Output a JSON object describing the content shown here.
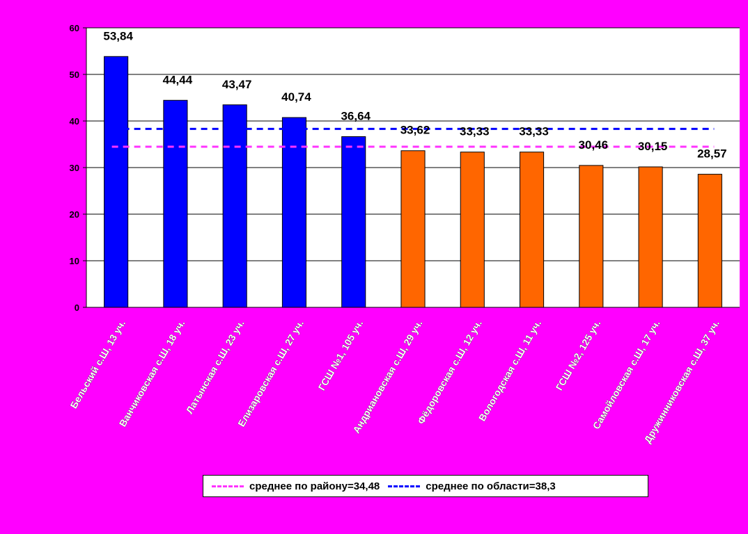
{
  "chart_data": {
    "type": "bar",
    "categories": [
      "Бельский с.Ш, 13 уч.",
      "Ванчиковская с.Ш, 18 уч.",
      "Латынская с.Ш, 23 уч.",
      "Елизаровская с.Ш, 27 уч.",
      "ГСШ №1, 105 уч.",
      "Андриановская с.Ш, 29 уч.",
      "Фёдоровская с.Ш, 12 уч.",
      "Вологодская с.Ш, 11 уч.",
      "ГСШ №2, 125 уч.",
      "Самойловская с.Ш, 17 уч.",
      "Дружинниковская с.Ш, 37 уч."
    ],
    "values": [
      53.84,
      44.44,
      43.47,
      40.74,
      36.64,
      33.62,
      33.33,
      33.33,
      30.46,
      30.15,
      28.57
    ],
    "value_labels": [
      "53,84",
      "44,44",
      "43,47",
      "40,74",
      "36,64",
      "33,62",
      "33,33",
      "33,33",
      "30,46",
      "30,15",
      "28,57"
    ],
    "bar_colors": [
      "#0000ff",
      "#0000ff",
      "#0000ff",
      "#0000ff",
      "#0000ff",
      "#ff6600",
      "#ff6600",
      "#ff6600",
      "#ff6600",
      "#ff6600",
      "#ff6600"
    ],
    "ylim": [
      0,
      60
    ],
    "yticks": [
      0,
      10,
      20,
      30,
      40,
      50,
      60
    ],
    "grid": true,
    "reference_lines": [
      {
        "label": "среднее по району=34,48",
        "value": 34.48,
        "color": "#ff33ff"
      },
      {
        "label": "среднее по области=38,3",
        "value": 38.3,
        "color": "#0000ff"
      }
    ],
    "legend": "bottom"
  }
}
